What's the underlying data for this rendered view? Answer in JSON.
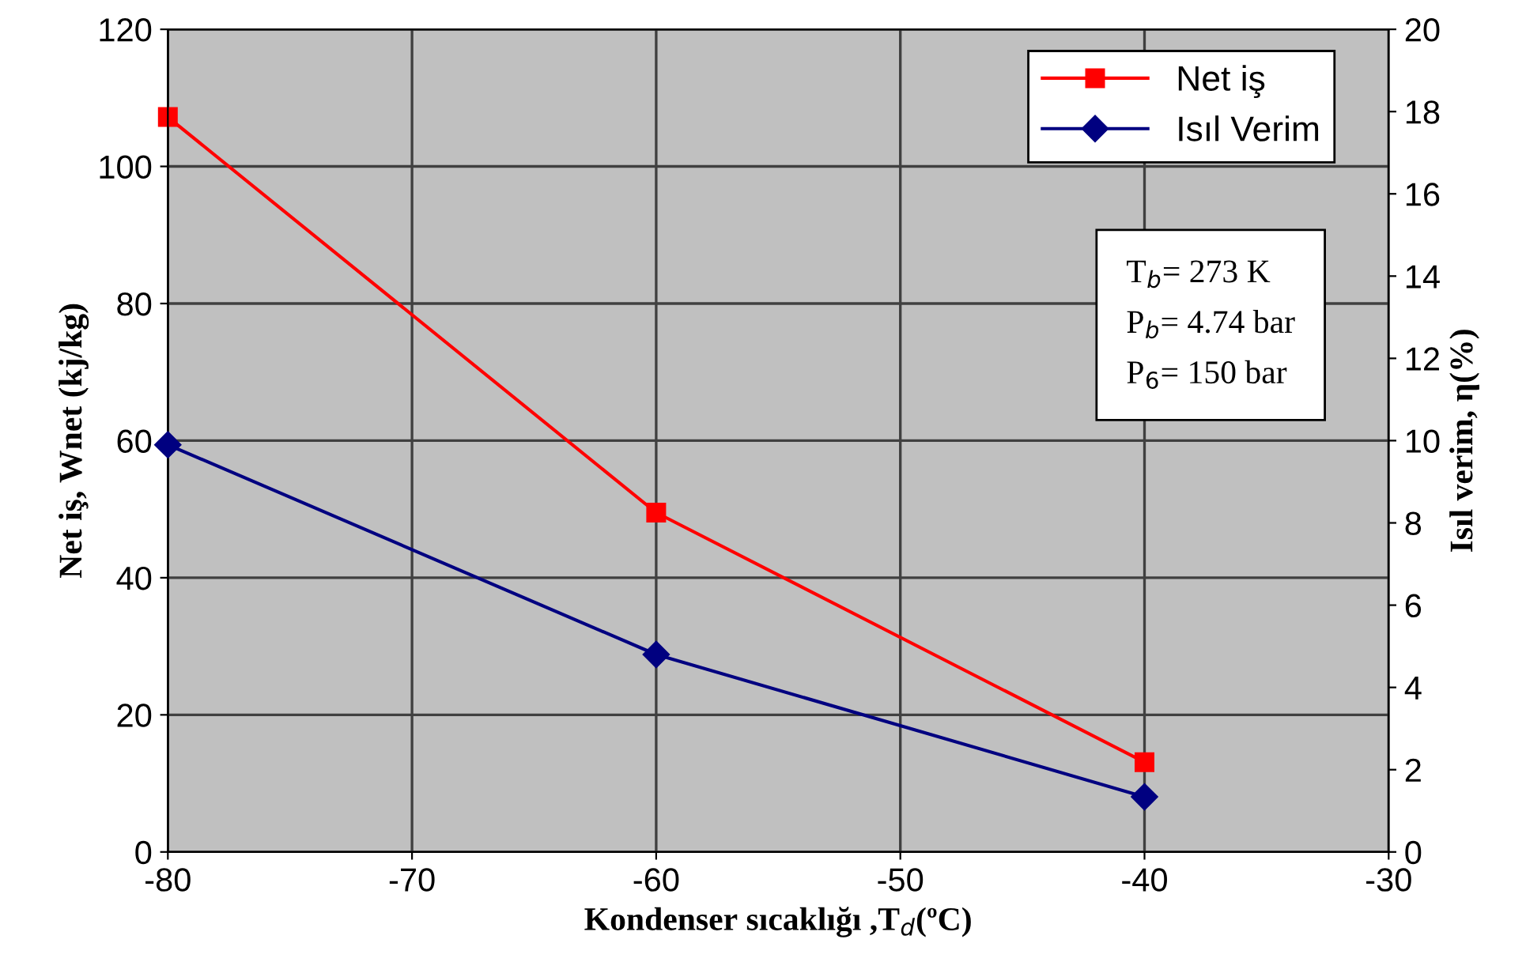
{
  "chart_data": {
    "type": "line",
    "x": [
      -80,
      -60,
      -40
    ],
    "series": [
      {
        "name": "Net iş",
        "color": "#ff0000",
        "values": [
          107.2,
          49.5,
          13.1
        ],
        "marker": "square"
      },
      {
        "name": "Isıl Verim",
        "color": "#000080",
        "values": [
          9.9,
          4.8,
          1.34
        ],
        "marker": "diamond",
        "axis": "y2"
      }
    ],
    "xlabel": "Kondenser sıcaklığı ,T$_{d}$(ºC)",
    "ylabel": "Net iş, Wnet (kj/kg)",
    "y2label": "Isıl verim, η(%)",
    "xlim": [
      -80,
      -30
    ],
    "xticks": [
      -80,
      -70,
      -60,
      -50,
      -40,
      -30
    ],
    "ylim": [
      0,
      120
    ],
    "yticks": [
      0,
      20,
      40,
      60,
      80,
      100,
      120
    ],
    "y2lim": [
      0,
      20
    ],
    "y2ticks": [
      0,
      2,
      4,
      6,
      8,
      10,
      12,
      14,
      16,
      18,
      20
    ],
    "annotations": [
      "T$_{b}$= 273 K",
      "P$_{b}$= 4.74 bar",
      "P$_{6}$= 150 bar"
    ],
    "grid": true,
    "legend": "top right",
    "line_style": "solid"
  }
}
